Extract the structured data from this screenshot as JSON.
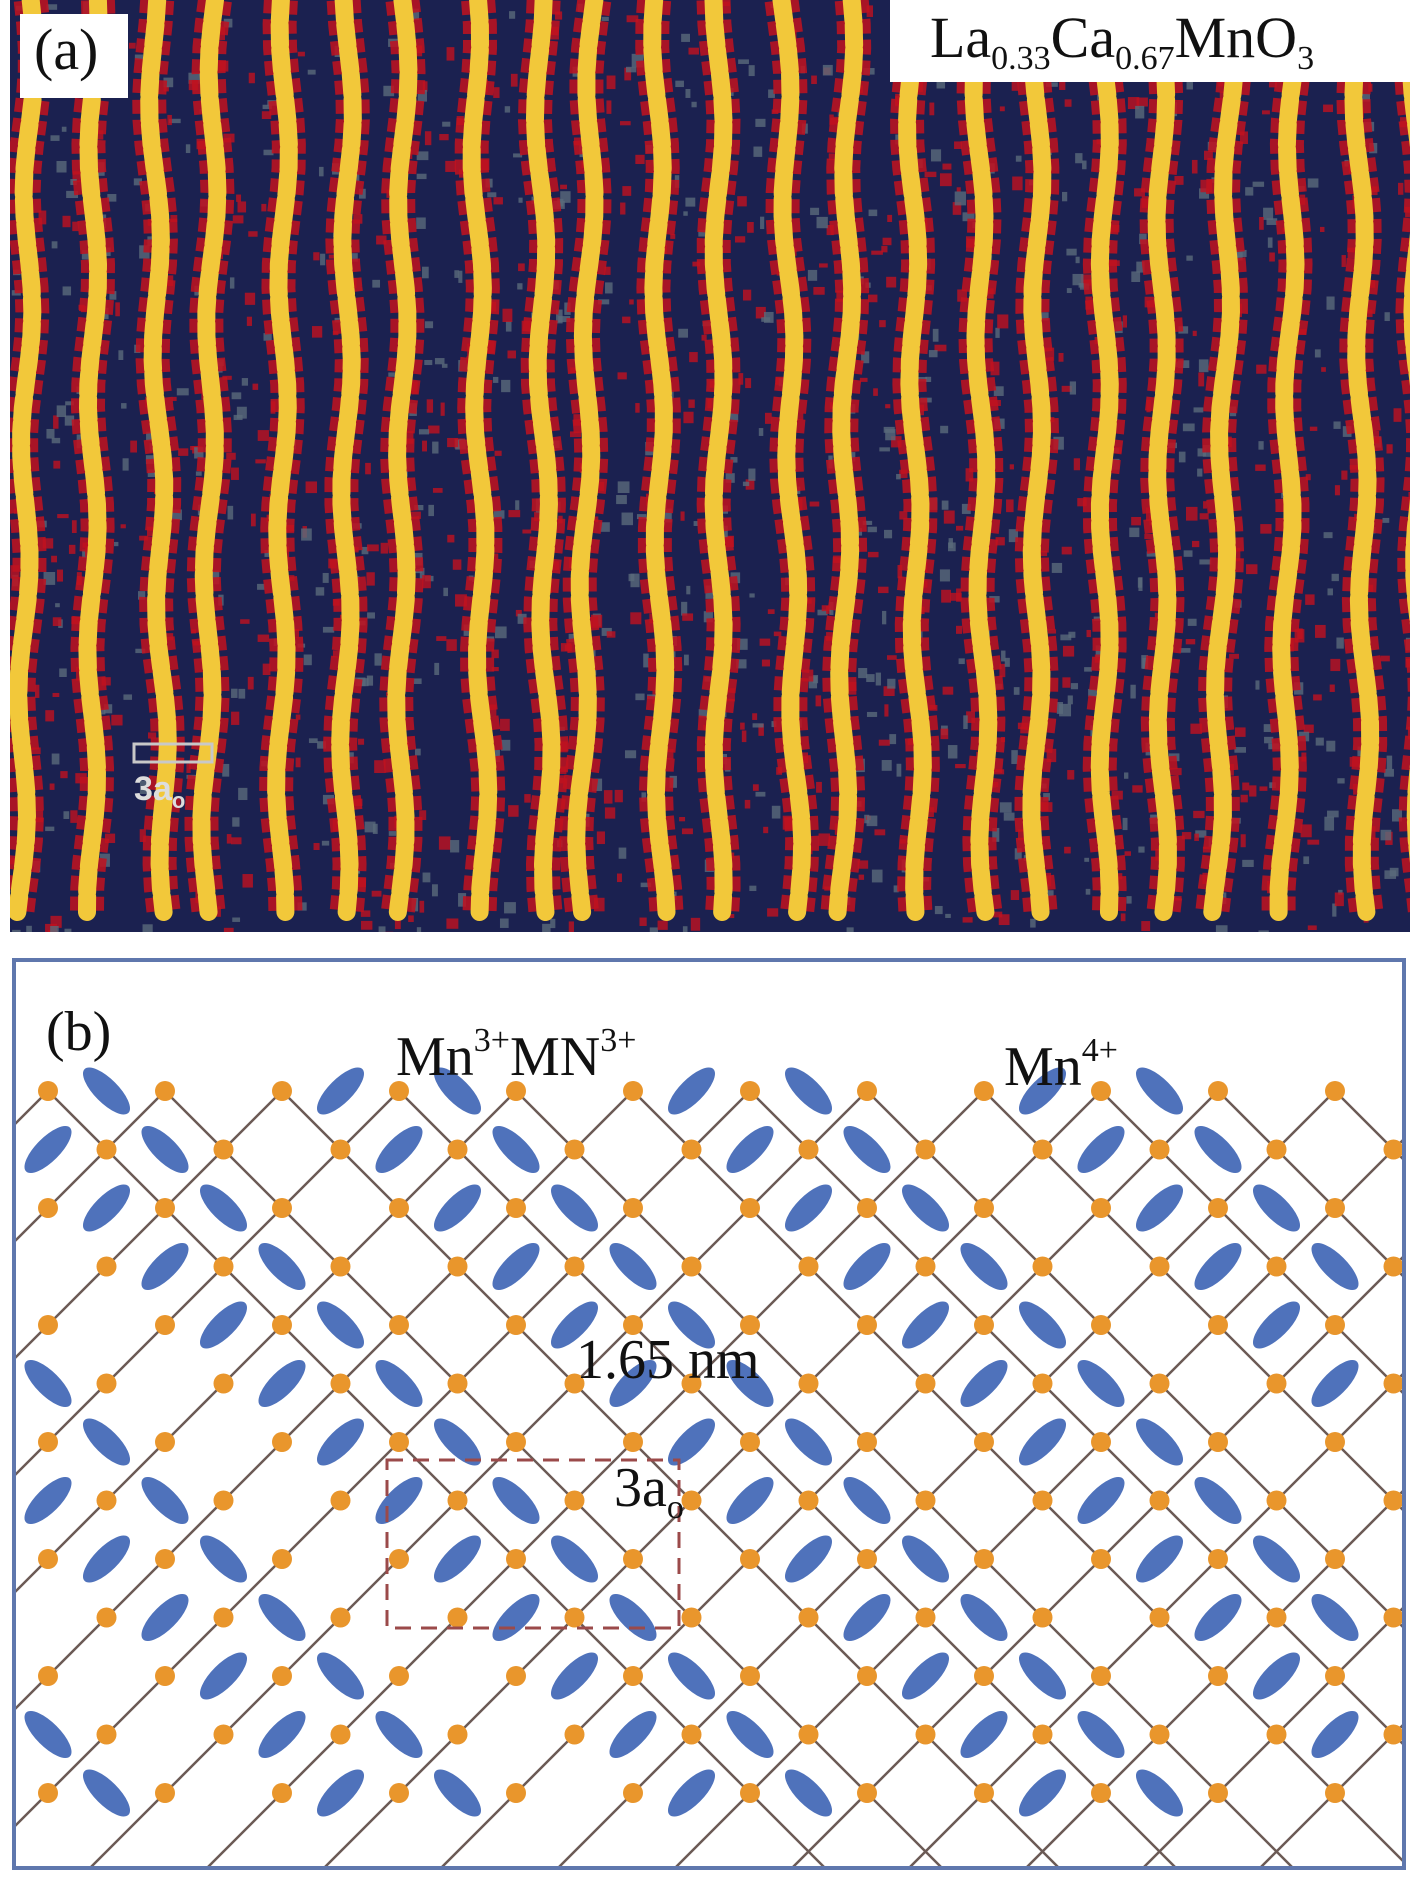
{
  "panel_a": {
    "label": "(a)",
    "formula": {
      "el1": "La",
      "sub1": "0.33",
      "el2": "Ca",
      "sub2": "0.67",
      "el3": "MnO",
      "sub3": "3"
    },
    "scale_bar": "3a",
    "scale_bar_sub": "o",
    "colors": {
      "background": "#1b2150",
      "stripe": "#f2c83a",
      "speckle": "#c1121f",
      "mid": "#5a6a7a"
    }
  },
  "panel_b": {
    "label": "(b)",
    "mn3_label": {
      "a": "Mn",
      "a_sup": "3+",
      "b": "MN",
      "b_sup": "3+"
    },
    "mn4_label": {
      "a": "Mn",
      "a_sup": "4+"
    },
    "distance": "1.65 nm",
    "unit_cell_label": {
      "a": "3a",
      "sub": "o"
    },
    "colors": {
      "border": "#5f77ad",
      "mn3_orbital": "#4f72bb",
      "mn4_atom": "#e9962c",
      "bond": "#6b5a55",
      "cell_box": "#9b4a4a"
    }
  }
}
